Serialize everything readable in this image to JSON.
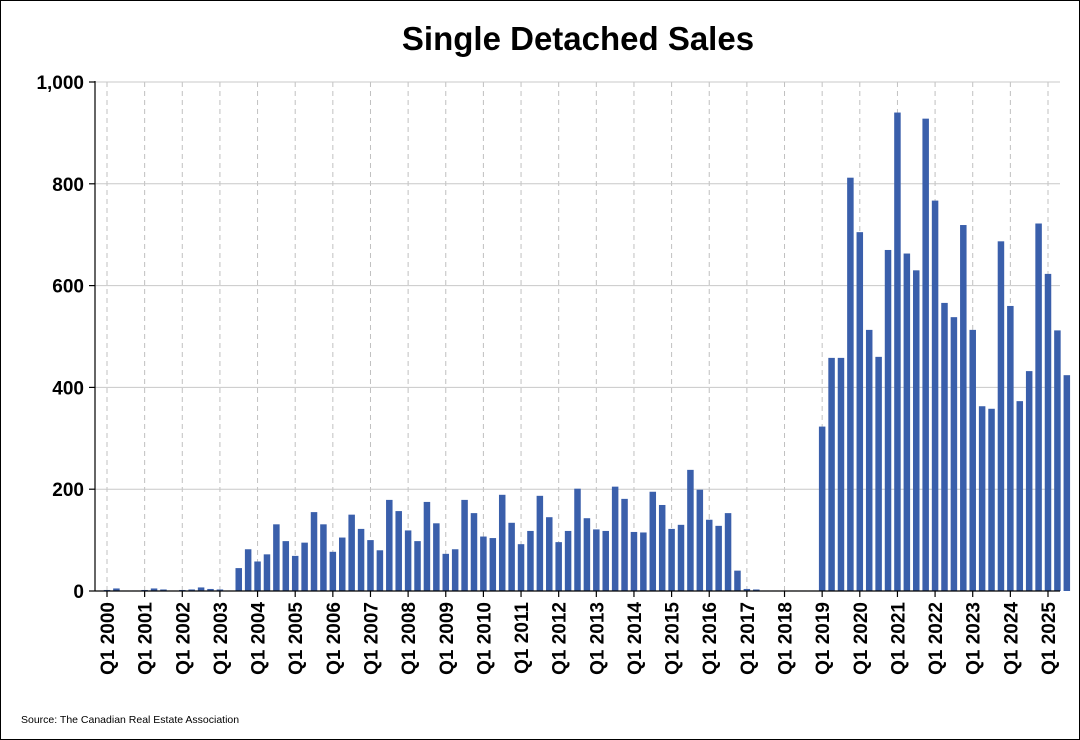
{
  "chart_data": {
    "type": "bar",
    "title": "Single Detached Sales",
    "source": "Source: The Canadian Real Estate Association",
    "bar_color": "#3a5fab",
    "ylim": [
      0,
      1000
    ],
    "y_ticks": [
      {
        "value": 0,
        "label": "0"
      },
      {
        "value": 200,
        "label": "200"
      },
      {
        "value": 400,
        "label": "400"
      },
      {
        "value": 600,
        "label": "600"
      },
      {
        "value": 800,
        "label": "800"
      },
      {
        "value": 1000,
        "label": "1,000"
      }
    ],
    "x_ticks": [
      "Q1 2000",
      "Q1 2001",
      "Q1 2002",
      "Q1 2003",
      "Q1 2004",
      "Q1 2005",
      "Q1 2006",
      "Q1 2007",
      "Q1 2008",
      "Q1 2009",
      "Q1 2010",
      "Q1 2011",
      "Q1 2012",
      "Q1 2013",
      "Q1 2014",
      "Q1 2015",
      "Q1 2016",
      "Q1 2017",
      "Q1 2018",
      "Q1 2019",
      "Q1 2020",
      "Q1 2021",
      "Q1 2022",
      "Q1 2023",
      "Q1 2024",
      "Q1 2025"
    ],
    "grid": true,
    "series": [
      {
        "values": [
          2,
          5,
          1,
          1,
          2,
          5,
          3,
          1,
          2,
          3,
          7,
          4,
          3,
          1,
          45,
          82,
          58,
          72,
          131,
          98,
          69,
          95,
          155,
          131,
          77,
          105,
          150,
          122,
          100,
          80,
          179,
          157,
          119,
          98,
          175,
          133,
          73,
          82,
          179,
          153,
          107,
          104,
          189,
          134,
          92,
          118,
          187,
          145,
          96,
          118,
          201,
          143,
          121,
          118,
          205,
          181,
          116,
          115,
          195,
          169,
          122,
          130,
          238,
          199,
          140,
          128,
          153,
          40,
          4,
          3,
          1,
          1,
          1,
          1,
          1,
          1,
          323,
          458,
          458,
          812,
          705,
          513,
          460,
          670,
          940,
          663,
          630,
          928,
          767,
          566,
          538,
          719,
          513,
          363,
          358,
          687,
          560,
          373,
          432,
          722,
          623,
          512,
          424
        ]
      }
    ]
  }
}
